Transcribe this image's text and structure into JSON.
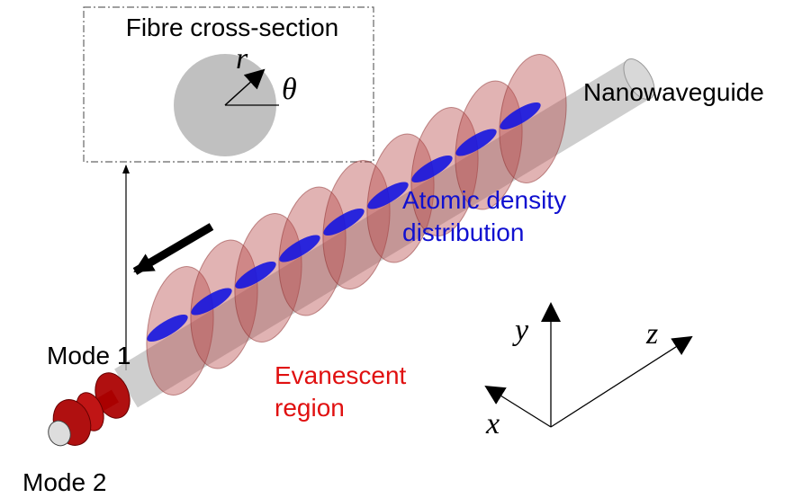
{
  "inset": {
    "title": "Fibre cross-section",
    "radius_label": "r",
    "angle_label": "θ"
  },
  "labels": {
    "nanowaveguide": "Nanowaveguide",
    "atomic_density": [
      "Atomic density",
      "distribution"
    ],
    "evanescent": [
      "Evanescent",
      "region"
    ],
    "mode_1": "Mode 1",
    "mode_2": "Mode 2"
  },
  "axes": {
    "y": "y",
    "z": "z",
    "x": "x"
  }
}
